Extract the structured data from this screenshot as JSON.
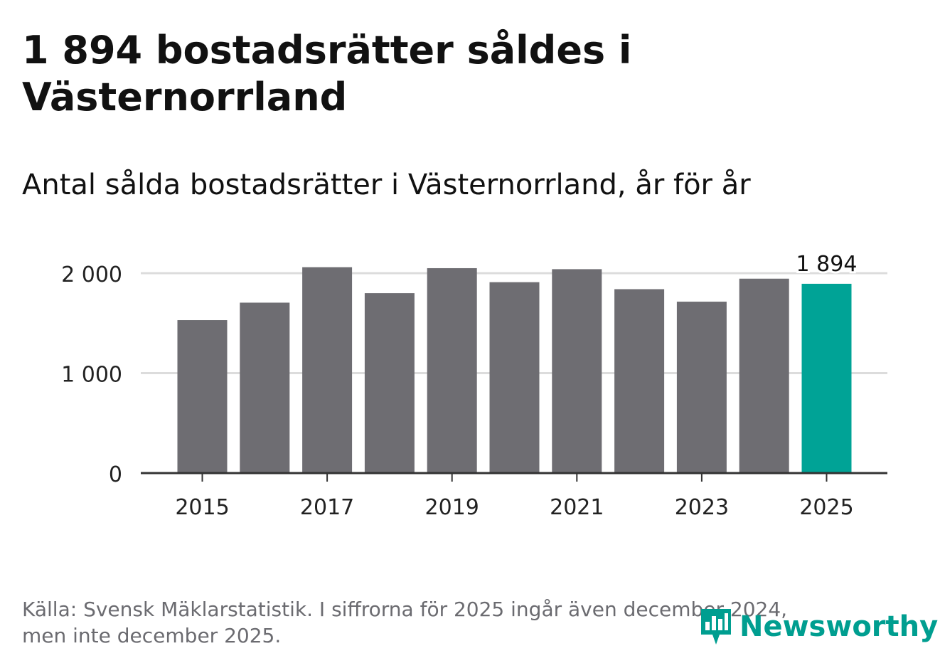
{
  "header": {
    "title": "1 894 bostadsrätter såldes i Västernorrland",
    "subtitle": "Antal sålda bostadsrätter i Västernorrland, år för år"
  },
  "chart_data": {
    "type": "bar",
    "title": "Antal sålda bostadsrätter i Västernorrland, år för år",
    "xlabel": "",
    "ylabel": "",
    "categories": [
      "2015",
      "2016",
      "2017",
      "2018",
      "2019",
      "2020",
      "2021",
      "2022",
      "2023",
      "2024",
      "2025"
    ],
    "values": [
      1530,
      1705,
      2060,
      1800,
      2050,
      1910,
      2040,
      1840,
      1715,
      1945,
      1894
    ],
    "x_tick_labels": [
      "2015",
      "2017",
      "2019",
      "2021",
      "2023",
      "2025"
    ],
    "y_ticks": [
      0,
      1000,
      2000
    ],
    "y_tick_labels": [
      "0",
      "1 000",
      "2 000"
    ],
    "ylim": [
      0,
      2000
    ],
    "grid": true,
    "highlight_index": 10,
    "highlight_label": "1 894",
    "colors": {
      "bar": "#6e6d72",
      "highlight": "#00a396",
      "grid": "#dcdcdc",
      "axis": "#333333"
    }
  },
  "footer": {
    "source_line1": "Källa: Svensk Mäklarstatistik. I siffrorna för 2025 ingår även december 2024,",
    "source_line2": "men inte december 2025."
  },
  "logo": {
    "text": "Newsworthy",
    "icon": "newsworthy-logo-icon",
    "color": "#009e90"
  }
}
